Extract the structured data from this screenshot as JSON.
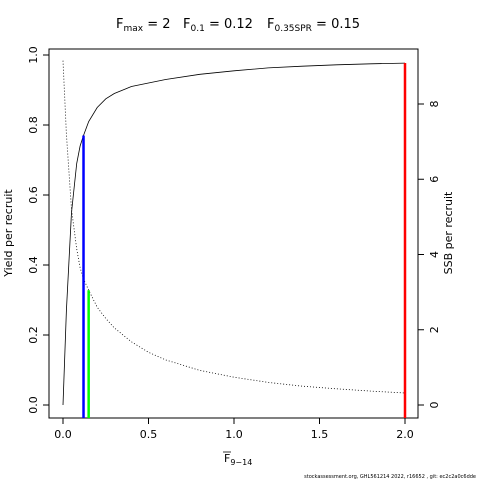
{
  "chart_data": {
    "type": "line",
    "title_parts": {
      "fmax_label": "F",
      "fmax_sub": "max",
      "fmax_val": " = 2",
      "f01_label": "F",
      "f01_sub": "0.1",
      "f01_val": " = 0.12",
      "fspr_label": "F",
      "fspr_sub": "0.35SPR",
      "fspr_val": " = 0.15"
    },
    "xlabel": "F",
    "xlabel_sub": "9−14",
    "ylabel_left": "Yield per recruit",
    "ylabel_right": "SSB per recruit",
    "xlim": [
      0,
      2
    ],
    "ylim_left": [
      0,
      1.0
    ],
    "ylim_right": [
      0,
      9.4
    ],
    "x_ticks": [
      "0.0",
      "0.5",
      "1.0",
      "1.5",
      "2.0"
    ],
    "x_tick_values": [
      0,
      0.5,
      1.0,
      1.5,
      2.0
    ],
    "y_left_ticks": [
      "0.0",
      "0.2",
      "0.4",
      "0.6",
      "0.8",
      "1.0"
    ],
    "y_left_tick_values": [
      0,
      0.2,
      0.4,
      0.6,
      0.8,
      1.0
    ],
    "y_right_ticks": [
      "0",
      "2",
      "4",
      "6",
      "8"
    ],
    "y_right_tick_values": [
      0,
      2,
      4,
      6,
      8
    ],
    "series": [
      {
        "style": "solid",
        "axis": "left",
        "x": [
          0,
          0.02,
          0.05,
          0.08,
          0.1,
          0.12,
          0.15,
          0.2,
          0.25,
          0.3,
          0.4,
          0.5,
          0.6,
          0.8,
          1.0,
          1.2,
          1.4,
          1.6,
          1.8,
          2.0
        ],
        "values": [
          0.0,
          0.27,
          0.55,
          0.69,
          0.74,
          0.77,
          0.81,
          0.85,
          0.875,
          0.89,
          0.91,
          0.92,
          0.93,
          0.945,
          0.955,
          0.963,
          0.968,
          0.972,
          0.975,
          0.977
        ]
      },
      {
        "style": "dotted",
        "axis": "right",
        "x": [
          0,
          0.02,
          0.05,
          0.08,
          0.1,
          0.12,
          0.15,
          0.2,
          0.25,
          0.3,
          0.4,
          0.5,
          0.6,
          0.8,
          1.0,
          1.2,
          1.4,
          1.6,
          1.8,
          2.0
        ],
        "values": [
          9.15,
          7.2,
          5.2,
          4.15,
          3.65,
          3.35,
          3.05,
          2.6,
          2.3,
          2.05,
          1.68,
          1.4,
          1.2,
          0.92,
          0.74,
          0.6,
          0.5,
          0.43,
          0.37,
          0.32
        ]
      }
    ],
    "reference_lines": [
      {
        "color": "#0000ff",
        "x": 0.12,
        "axis": "left",
        "value": 0.77
      },
      {
        "color": "#00ff00",
        "x": 0.15,
        "axis": "right",
        "value": 3.05
      },
      {
        "color": "#ff0000",
        "x": 2.0,
        "axis": "left",
        "value": 0.977
      }
    ],
    "grid": false,
    "legend": "none"
  },
  "footer": "stockassessment.org, GHL561214 2022, r16652 , git: ec2c2a0c6dde"
}
